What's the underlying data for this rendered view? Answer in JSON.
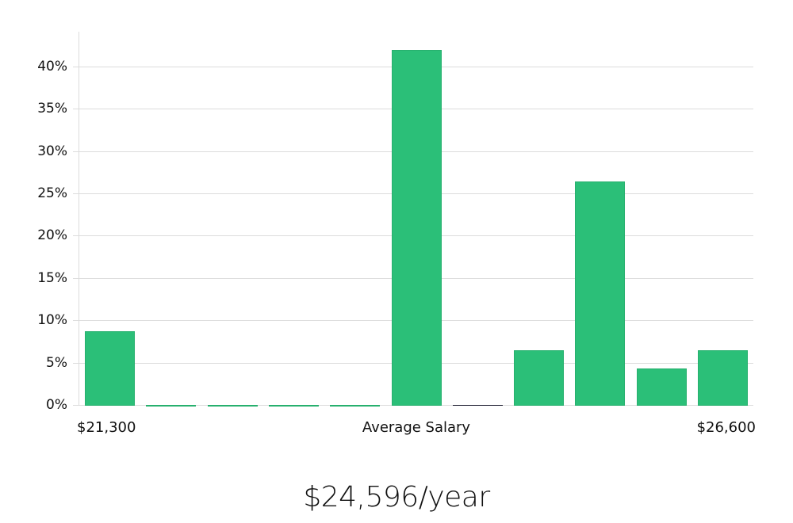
{
  "chart_data": {
    "type": "bar",
    "title": "",
    "xlabel": "Average Salary",
    "ylabel": "",
    "x_range_labels": {
      "min": "$21,300",
      "center": "Average Salary",
      "max": "$26,600"
    },
    "categories": [
      "1",
      "2",
      "3",
      "4",
      "5",
      "6",
      "7",
      "8",
      "9",
      "10",
      "11"
    ],
    "values": [
      8.8,
      0,
      0,
      0,
      0,
      42.0,
      0,
      6.6,
      26.5,
      4.4,
      6.6
    ],
    "marker_bar_index": 6,
    "ylim": [
      0,
      44
    ],
    "yticks": [
      0,
      5,
      10,
      15,
      20,
      25,
      30,
      35,
      40
    ],
    "ytick_labels": [
      "0%",
      "5%",
      "10%",
      "15%",
      "20%",
      "25%",
      "30%",
      "35%",
      "40%"
    ],
    "grid": true,
    "legend": null,
    "bar_color": "#2bbf78",
    "marker_color": "#1a1a2e"
  },
  "summary": {
    "average_salary": "$24,596/year"
  }
}
